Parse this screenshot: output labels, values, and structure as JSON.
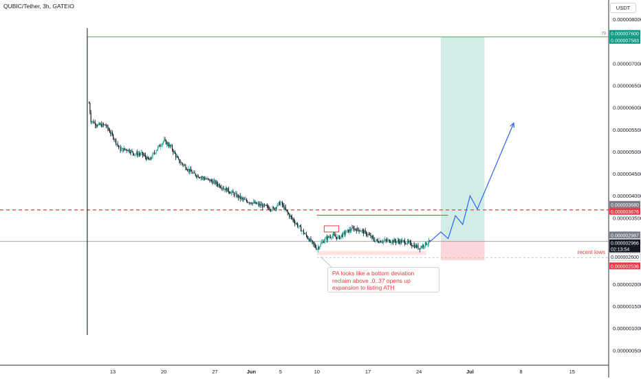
{
  "header": {
    "title": "QUBIC/Tether, 3h, GATEIO",
    "unit_button": "USDT"
  },
  "colors": {
    "up": "#26a69a",
    "down": "#131722",
    "accent_red": "#e0403d",
    "target_green": "#089981",
    "projection": "#2962ff"
  },
  "annotations": {
    "callout_lines": [
      "PA looks like a bottom deviation",
      "reclaim above .0..37 opens up",
      "expansion to listing ATH"
    ],
    "recent_lows": "recent lows",
    "box_small_label": "",
    "target_tag": "79"
  },
  "price_tags": {
    "green_top": "0.000007600",
    "green_bottom": "0.000007583",
    "gray_upper": "0.000003680",
    "red_level": "0.000003676",
    "gray_mid": "0.000002987",
    "last_price": "0.000002966",
    "countdown": "02:13:54",
    "white_low": "0.000002600",
    "red_low": "0.000002536"
  },
  "chart_data": {
    "type": "candlestick",
    "title": "QUBIC/Tether, 3h, GATEIO",
    "y_unit": "USDT",
    "y_ticks": [
      "0.000008000",
      "0.000007000",
      "0.000006500",
      "0.000006000",
      "0.000005500",
      "0.000005000",
      "0.000004500",
      "0.000004000",
      "0.000003500",
      "0.000002000",
      "0.000001500",
      "0.000001000",
      "0.000000500"
    ],
    "x_ticks": [
      "13",
      "20",
      "27",
      "Jun",
      "5",
      "10",
      "17",
      "24",
      "Jul",
      "8",
      "15"
    ],
    "close_path": [
      [
        "May 9 12:00",
        6.5e-06
      ],
      [
        "May 9 18:00",
        6.1e-06
      ],
      [
        "May 10",
        5.7e-06
      ],
      [
        "May 11",
        5.6e-06
      ],
      [
        "May 12",
        5.6e-06
      ],
      [
        "May 13",
        5.35e-06
      ],
      [
        "May 14",
        5.05e-06
      ],
      [
        "May 15",
        5.05e-06
      ],
      [
        "May 16",
        4.95e-06
      ],
      [
        "May 17",
        4.95e-06
      ],
      [
        "May 18",
        4.8e-06
      ],
      [
        "May 19",
        5.05e-06
      ],
      [
        "May 20",
        5.25e-06
      ],
      [
        "May 21",
        5.1e-06
      ],
      [
        "May 22",
        4.8e-06
      ],
      [
        "May 24",
        4.5e-06
      ],
      [
        "May 27",
        4.3e-06
      ],
      [
        "May 29",
        4.1e-06
      ],
      [
        "May 31",
        3.9e-06
      ],
      [
        "Jun 2",
        3.8e-06
      ],
      [
        "Jun 4",
        3.7e-06
      ],
      [
        "Jun 5",
        3.85e-06
      ],
      [
        "Jun 6",
        3.6e-06
      ],
      [
        "Jun 8",
        3.2e-06
      ],
      [
        "Jun 9",
        3e-06
      ],
      [
        "Jun 10",
        2.8e-06
      ],
      [
        "Jun 11",
        3e-06
      ],
      [
        "Jun 12",
        3.1e-06
      ],
      [
        "Jun 13",
        3.05e-06
      ],
      [
        "Jun 14",
        3.18e-06
      ],
      [
        "Jun 15",
        3.26e-06
      ],
      [
        "Jun 16",
        3.22e-06
      ],
      [
        "Jun 17",
        3.12e-06
      ],
      [
        "Jun 18",
        2.98e-06
      ],
      [
        "Jun 20",
        2.98e-06
      ],
      [
        "Jun 22",
        2.96e-06
      ],
      [
        "Jun 23",
        2.9e-06
      ],
      [
        "Jun 24",
        2.82e-06
      ],
      [
        "Jun 25",
        2.92e-06
      ],
      [
        "Jun 25 12:00",
        2.966e-06
      ]
    ],
    "levels": {
      "listing_ath": 7.6e-06,
      "reclaim_level": 3.68e-06,
      "current": 2.966e-06,
      "recent_lows": 2.6e-06
    },
    "projection": [
      [
        "Jun 25 12:00",
        2.96e-06
      ],
      [
        "Jun 27",
        3.18e-06
      ],
      [
        "Jun 28",
        3.03e-06
      ],
      [
        "Jun 29",
        3.55e-06
      ],
      [
        "Jun 30",
        3.35e-06
      ],
      [
        "Jul 1",
        4e-06
      ],
      [
        "Jul 2",
        3.7e-06
      ],
      [
        "Jul 7",
        5.65e-06
      ]
    ],
    "position": {
      "entry": 2.987e-06,
      "target": 7.6e-06,
      "stop": 2.536e-06
    }
  }
}
